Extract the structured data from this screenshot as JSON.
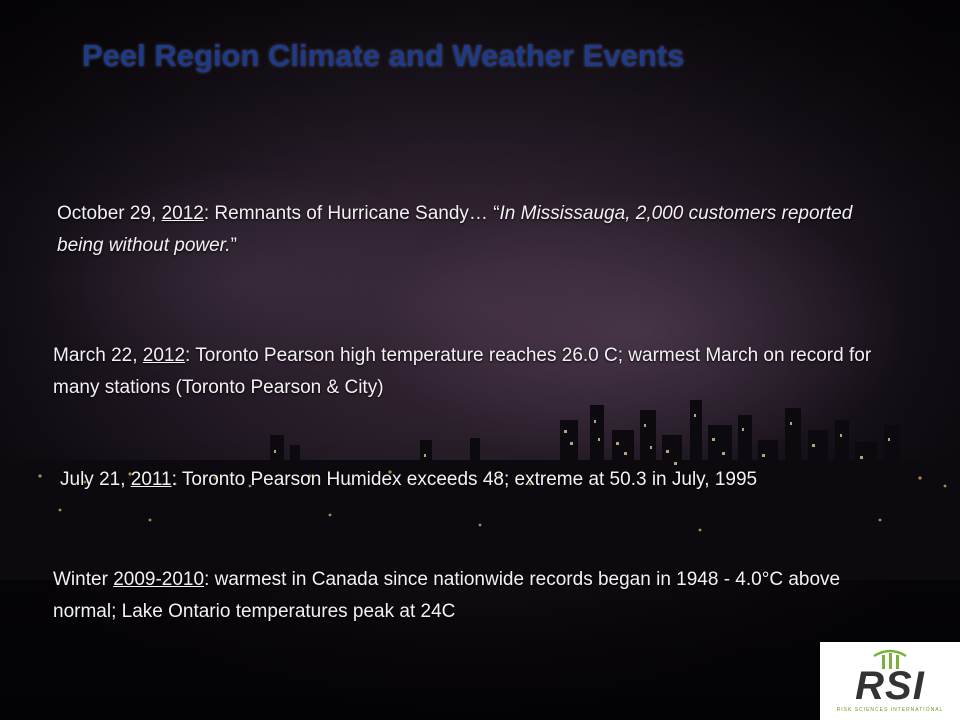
{
  "slide": {
    "title": "Peel Region Climate and Weather Events",
    "events": [
      {
        "date": "October 29, ",
        "year": "2012",
        "text": ": Remnants of Hurricane Sandy… “",
        "quote": "In Mississauga, 2,000 customers reported being without power.",
        "end": "”"
      },
      {
        "date": "March 22, ",
        "year": "2012",
        "text": ": Toronto Pearson high temperature reaches 26.0 C; warmest March on record for many stations (Toronto Pearson & City)"
      },
      {
        "date": "July 21, ",
        "year": "2011",
        "text": ": Toronto Pearson Humidex  exceeds 48; extreme at 50.3 in July, 1995"
      },
      {
        "date": "Winter ",
        "year": "2009-2010",
        "text": ": warmest in Canada since nationwide records began in 1948 - 4.0°C above normal; Lake Ontario temperatures peak at 24C"
      }
    ],
    "logo": {
      "name": "RSI",
      "tagline": "RISK SCIENCES INTERNATIONAL",
      "accent": "#7bb03a"
    },
    "colors": {
      "title": "#1e3a8a",
      "text": "#f4f1f4"
    }
  }
}
